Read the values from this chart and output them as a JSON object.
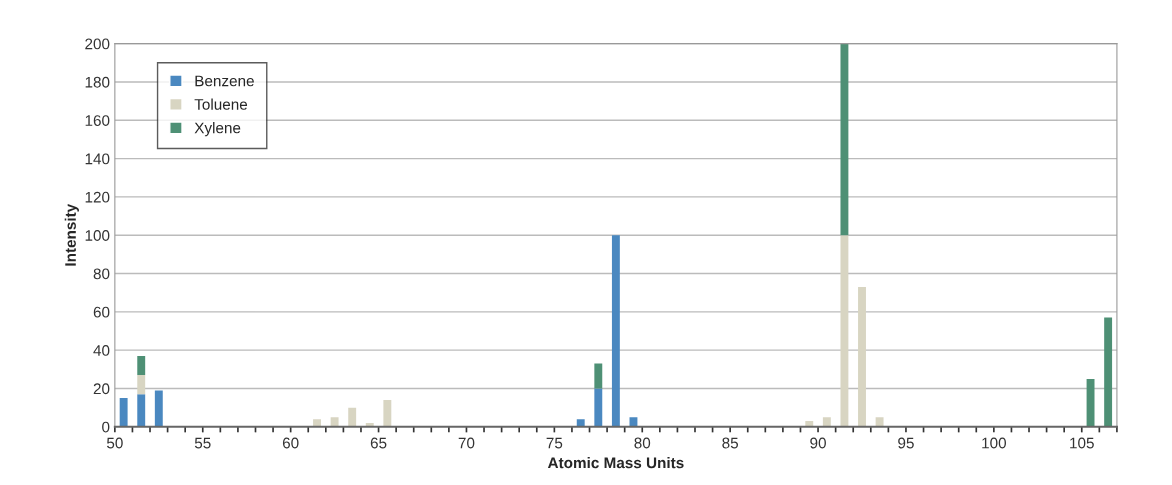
{
  "chart_data": {
    "type": "bar",
    "stacked": true,
    "xlabel": "Atomic Mass Units",
    "ylabel": "Intensity",
    "x": [
      50.5,
      51.5,
      52.5,
      61.5,
      62.5,
      63.5,
      64.5,
      65.5,
      76.5,
      77.5,
      78.5,
      79.5,
      89.5,
      90.5,
      91.5,
      92.5,
      93.5,
      105.5,
      106.5
    ],
    "series": [
      {
        "name": "Benzene",
        "color": "#4a88c0",
        "values": [
          15,
          17,
          19,
          null,
          null,
          null,
          null,
          null,
          4,
          20,
          100,
          5,
          null,
          null,
          null,
          null,
          null,
          null,
          null
        ]
      },
      {
        "name": "Toluene",
        "color": "#d8d5c2",
        "values": [
          null,
          10,
          null,
          4,
          5,
          10,
          2,
          14,
          null,
          null,
          null,
          null,
          3,
          5,
          100,
          73,
          5,
          null,
          null
        ]
      },
      {
        "name": "Xylene",
        "color": "#4e9075",
        "values": [
          null,
          10,
          null,
          null,
          null,
          null,
          null,
          null,
          null,
          13,
          null,
          null,
          null,
          null,
          100,
          null,
          null,
          25,
          57
        ]
      }
    ],
    "xlim": [
      50,
      107
    ],
    "ylim": [
      0,
      200
    ],
    "xticks": [
      50,
      {
        "value": 51,
        "label": null
      },
      {
        "value": 52,
        "label": null
      },
      {
        "value": 53,
        "label": null
      },
      {
        "value": 54,
        "label": null
      },
      55,
      {
        "value": 56,
        "label": null
      },
      {
        "value": 57,
        "label": null
      },
      {
        "value": 58,
        "label": null
      },
      {
        "value": 59,
        "label": null
      },
      60,
      {
        "value": 61,
        "label": null
      },
      {
        "value": 62,
        "label": null
      },
      {
        "value": 63,
        "label": null
      },
      {
        "value": 64,
        "label": null
      },
      65,
      {
        "value": 66,
        "label": null
      },
      {
        "value": 67,
        "label": null
      },
      {
        "value": 68,
        "label": null
      },
      {
        "value": 69,
        "label": null
      },
      70,
      {
        "value": 71,
        "label": null
      },
      {
        "value": 72,
        "label": null
      },
      {
        "value": 73,
        "label": null
      },
      {
        "value": 74,
        "label": null
      },
      75,
      {
        "value": 76,
        "label": null
      },
      {
        "value": 77,
        "label": null
      },
      {
        "value": 78,
        "label": null
      },
      {
        "value": 79,
        "label": null
      },
      80,
      {
        "value": 81,
        "label": null
      },
      {
        "value": 82,
        "label": null
      },
      {
        "value": 83,
        "label": null
      },
      {
        "value": 84,
        "label": null
      },
      85,
      {
        "value": 86,
        "label": null
      },
      {
        "value": 87,
        "label": null
      },
      {
        "value": 88,
        "label": null
      },
      {
        "value": 89,
        "label": null
      },
      90,
      {
        "value": 91,
        "label": null
      },
      {
        "value": 92,
        "label": null
      },
      {
        "value": 93,
        "label": null
      },
      {
        "value": 94,
        "label": null
      },
      95,
      {
        "value": 96,
        "label": null
      },
      {
        "value": 97,
        "label": null
      },
      {
        "value": 98,
        "label": null
      },
      {
        "value": 99,
        "label": null
      },
      100,
      {
        "value": 101,
        "label": null
      },
      {
        "value": 102,
        "label": null
      },
      {
        "value": 103,
        "label": null
      },
      {
        "value": 104,
        "label": null
      },
      105,
      {
        "value": 106,
        "label": null
      },
      {
        "value": 107,
        "label": null
      }
    ],
    "yticks": [
      0,
      20,
      40,
      60,
      80,
      100,
      120,
      140,
      160,
      180,
      200
    ],
    "grid": "y",
    "legend": "top left"
  }
}
